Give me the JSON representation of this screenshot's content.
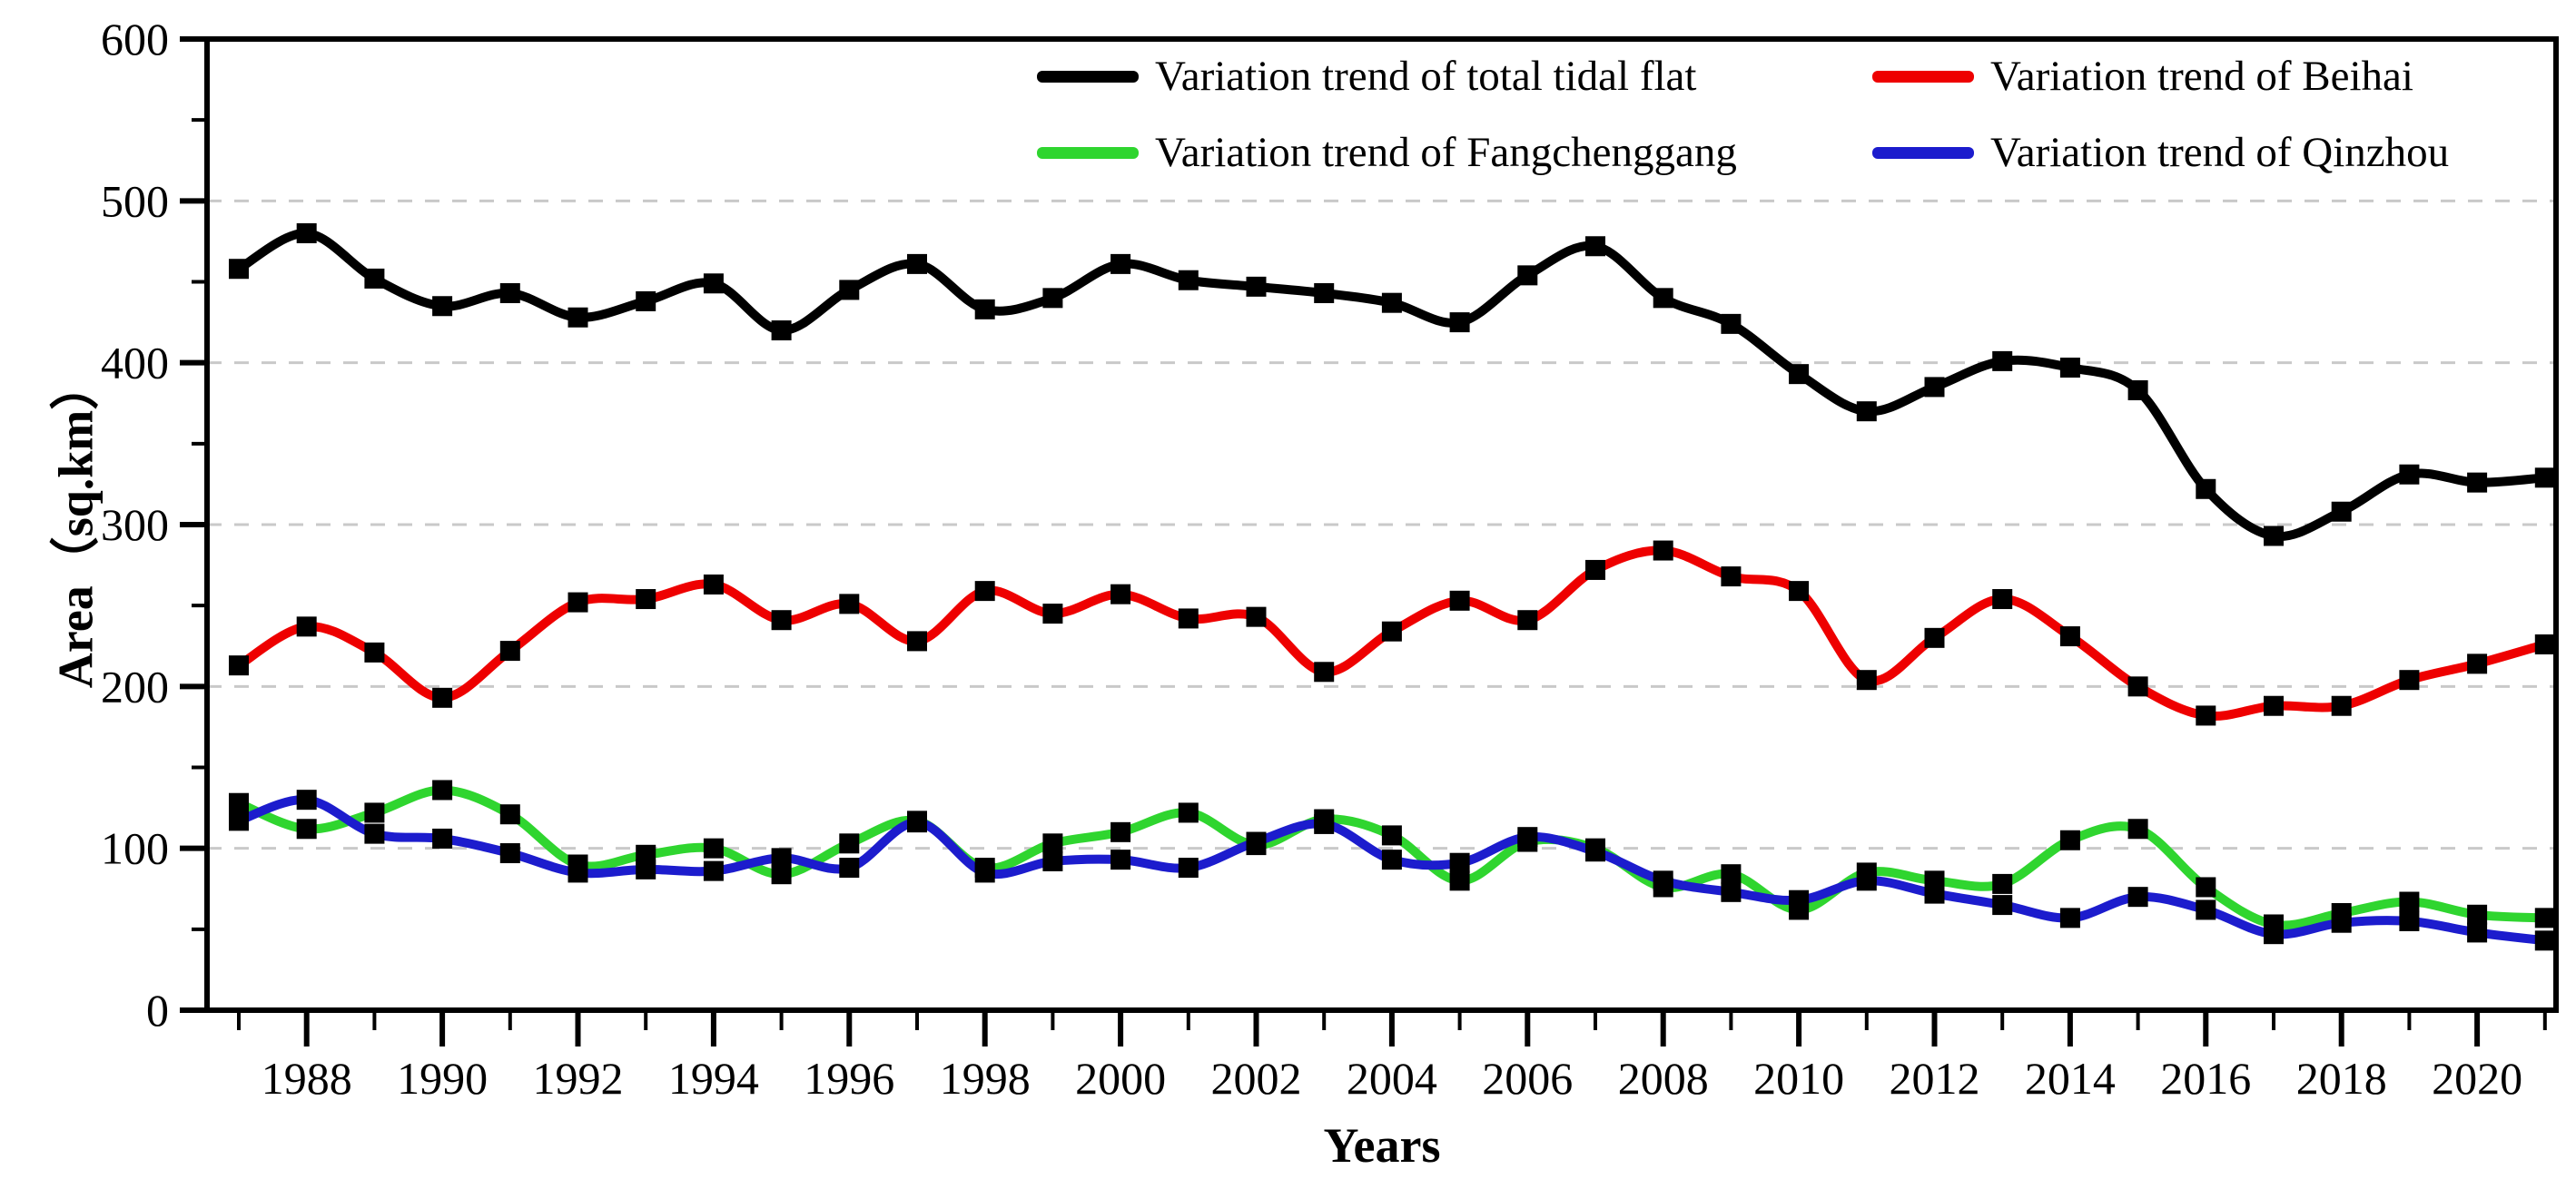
{
  "chart_data": {
    "type": "line",
    "title": "",
    "xlabel": "Years",
    "ylabel": "Area（sq.km）",
    "x": [
      1987,
      1988,
      1989,
      1990,
      1991,
      1992,
      1993,
      1994,
      1995,
      1996,
      1997,
      1998,
      1999,
      2000,
      2001,
      2002,
      2003,
      2004,
      2005,
      2006,
      2007,
      2008,
      2009,
      2010,
      2011,
      2012,
      2013,
      2014,
      2015,
      2016,
      2017,
      2018,
      2019,
      2020,
      2021
    ],
    "series": [
      {
        "name": "Variation trend of total tidal flat",
        "color": "#000000",
        "values": [
          458,
          480,
          452,
          435,
          443,
          428,
          438,
          449,
          420,
          445,
          461,
          433,
          440,
          461,
          451,
          447,
          443,
          437,
          425,
          454,
          472,
          440,
          424,
          393,
          370,
          385,
          401,
          397,
          383,
          322,
          293,
          308,
          331,
          326,
          329
        ]
      },
      {
        "name": "Variation trend of Beihai",
        "color": "#ee0000",
        "values": [
          213,
          237,
          221,
          193,
          222,
          252,
          254,
          263,
          241,
          251,
          228,
          259,
          245,
          257,
          242,
          243,
          209,
          234,
          253,
          241,
          272,
          284,
          268,
          259,
          204,
          230,
          254,
          231,
          200,
          182,
          188,
          188,
          204,
          214,
          226
        ]
      },
      {
        "name": "Variation trend of Fangchenggang",
        "color": "#2fd52f",
        "values": [
          128,
          112,
          122,
          136,
          121,
          90,
          96,
          100,
          84,
          103,
          117,
          88,
          103,
          110,
          122,
          102,
          118,
          108,
          80,
          104,
          100,
          76,
          84,
          62,
          85,
          80,
          78,
          105,
          112,
          76,
          53,
          60,
          67,
          59,
          57
        ]
      },
      {
        "name": "Variation trend of Qinzhou",
        "color": "#1c1ccd",
        "values": [
          117,
          130,
          109,
          106,
          97,
          85,
          87,
          86,
          94,
          88,
          116,
          85,
          92,
          93,
          88,
          104,
          115,
          93,
          91,
          107,
          98,
          80,
          73,
          68,
          80,
          72,
          65,
          57,
          70,
          62,
          47,
          54,
          55,
          48,
          43
        ]
      }
    ],
    "ylim": [
      0,
      600
    ],
    "yticks": [
      0,
      100,
      200,
      300,
      400,
      500,
      600
    ],
    "y_minor_ticks": [
      50,
      150,
      250,
      350,
      450,
      550
    ],
    "xtick_labels": [
      "1988",
      "1990",
      "1992",
      "1994",
      "1996",
      "1998",
      "2000",
      "2002",
      "2004",
      "2006",
      "2008",
      "2010",
      "2012",
      "2014",
      "2016",
      "2018",
      "2020"
    ],
    "grid": "horizontal-dashed",
    "grid_color": "#c9c9c9",
    "legend_position": "top-center-inside",
    "marker": "black-square",
    "marker_color": "#000000"
  }
}
